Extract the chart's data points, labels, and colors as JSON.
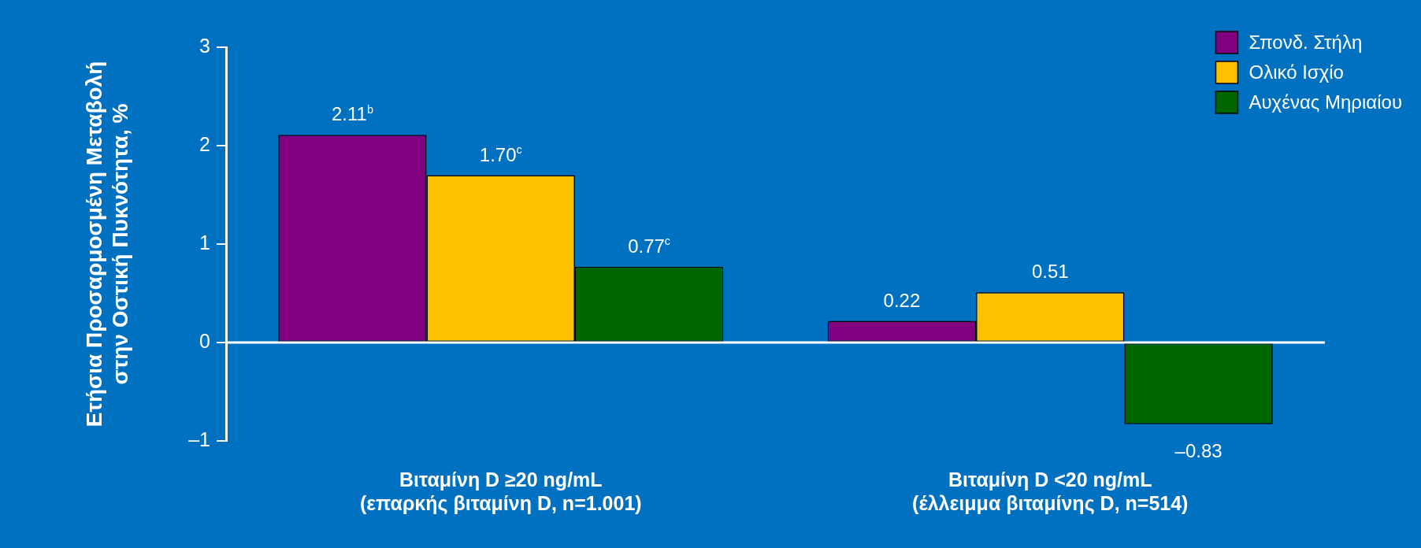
{
  "chart_data": {
    "type": "bar",
    "ylabel": "Ετήσια Προσαρμοσμένη Μεταβολή\nστην Οστική Πυκνότητα, %",
    "categories": [
      "Βιταμίνη D ≥20 ng/mL\n(επαρκής βιταμίνη D, n=1.001)",
      "Βιταμίνη D <20 ng/mL\n(έλλειμμα βιταμίνης D, n=514)"
    ],
    "series": [
      {
        "name": "Σπονδ. Στήλη",
        "color": "#800080",
        "values": [
          2.11,
          0.22
        ],
        "value_labels": [
          "2.11$^{b}$",
          "0.22"
        ]
      },
      {
        "name": "Ολικό Ισχίο",
        "color": "#ffc000",
        "values": [
          1.7,
          0.51
        ],
        "value_labels": [
          "1.70$^{c}$",
          "0.51"
        ]
      },
      {
        "name": "Αυχένας Μηριαίου",
        "color": "#006600",
        "values": [
          0.77,
          -0.83
        ],
        "value_labels": [
          "0.77$^{c}$",
          "–0.83"
        ]
      }
    ],
    "ylim": [
      -1,
      3
    ],
    "yticks": [
      {
        "value": -1,
        "label": "–1"
      },
      0,
      1,
      2,
      3
    ],
    "grid": false,
    "ref_lines": [
      {
        "axis": "y",
        "value": 0,
        "color": "#ffffff"
      }
    ],
    "legend": "top right"
  }
}
